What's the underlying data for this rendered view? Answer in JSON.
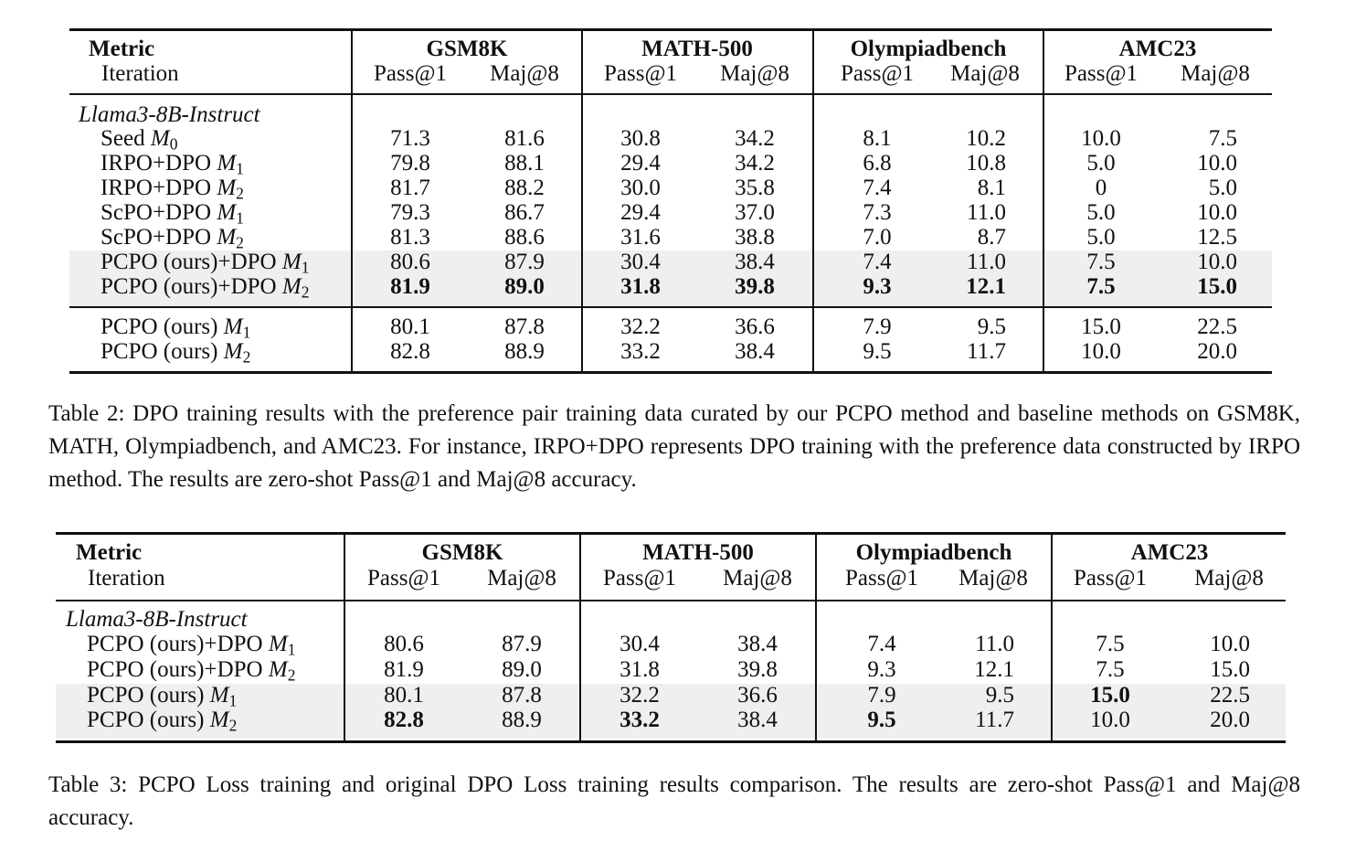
{
  "table2": {
    "header": {
      "metric": "Metric",
      "iteration": "Iteration",
      "groups": [
        "GSM8K",
        "MATH-500",
        "Olympiadbench",
        "AMC23"
      ],
      "subcolumns": [
        "Pass@1",
        "Maj@8",
        "Pass@1",
        "Maj@8",
        "Pass@1",
        "Maj@8",
        "Pass@1",
        "Maj@8"
      ]
    },
    "model": "Llama3-8B-Instruct",
    "rows": [
      {
        "method": "Seed",
        "iter": "M",
        "sub": "0",
        "values": [
          "71.3",
          "81.6",
          "30.8",
          "34.2",
          "8.1",
          "10.2",
          "10.0",
          "7.5"
        ],
        "bold": []
      },
      {
        "method": "IRPO+DPO",
        "iter": "M",
        "sub": "1",
        "values": [
          "79.8",
          "88.1",
          "29.4",
          "34.2",
          "6.8",
          "10.8",
          "5.0",
          "10.0"
        ],
        "bold": []
      },
      {
        "method": "IRPO+DPO",
        "iter": "M",
        "sub": "2",
        "values": [
          "81.7",
          "88.2",
          "30.0",
          "35.8",
          "7.4",
          "8.1",
          "0",
          "5.0"
        ],
        "bold": []
      },
      {
        "method": "ScPO+DPO",
        "iter": "M",
        "sub": "1",
        "values": [
          "79.3",
          "86.7",
          "29.4",
          "37.0",
          "7.3",
          "11.0",
          "5.0",
          "10.0"
        ],
        "bold": []
      },
      {
        "method": "ScPO+DPO",
        "iter": "M",
        "sub": "2",
        "values": [
          "81.3",
          "88.6",
          "31.6",
          "38.8",
          "7.0",
          "8.7",
          "5.0",
          "12.5"
        ],
        "bold": []
      },
      {
        "method": "PCPO (ours)+DPO",
        "iter": "M",
        "sub": "1",
        "values": [
          "80.6",
          "87.9",
          "30.4",
          "38.4",
          "7.4",
          "11.0",
          "7.5",
          "10.0"
        ],
        "bold": []
      },
      {
        "method": "PCPO (ours)+DPO",
        "iter": "M",
        "sub": "2",
        "values": [
          "81.9",
          "89.0",
          "31.8",
          "39.8",
          "9.3",
          "12.1",
          "7.5",
          "15.0"
        ],
        "bold": [
          0,
          1,
          2,
          3,
          4,
          5,
          6,
          7
        ]
      },
      {
        "method": "PCPO (ours)",
        "iter": "M",
        "sub": "1",
        "values": [
          "80.1",
          "87.8",
          "32.2",
          "36.6",
          "7.9",
          "9.5",
          "15.0",
          "22.5"
        ],
        "bold": []
      },
      {
        "method": "PCPO (ours)",
        "iter": "M",
        "sub": "2",
        "values": [
          "82.8",
          "88.9",
          "33.2",
          "38.4",
          "9.5",
          "11.7",
          "10.0",
          "20.0"
        ],
        "bold": []
      }
    ],
    "caption": "Table 2: DPO training results with the preference pair training data curated by our PCPO method and baseline methods on GSM8K, MATH, Olympiadbench, and AMC23. For instance, IRPO+DPO represents DPO training with the preference data constructed by IRPO method. The results are zero-shot Pass@1 and Maj@8 accuracy."
  },
  "table3": {
    "header": {
      "metric": "Metric",
      "iteration": "Iteration",
      "groups": [
        "GSM8K",
        "MATH-500",
        "Olympiadbench",
        "AMC23"
      ],
      "subcolumns": [
        "Pass@1",
        "Maj@8",
        "Pass@1",
        "Maj@8",
        "Pass@1",
        "Maj@8",
        "Pass@1",
        "Maj@8"
      ]
    },
    "model": "Llama3-8B-Instruct",
    "rows": [
      {
        "method": "PCPO (ours)+DPO",
        "iter": "M",
        "sub": "1",
        "values": [
          "80.6",
          "87.9",
          "30.4",
          "38.4",
          "7.4",
          "11.0",
          "7.5",
          "10.0"
        ],
        "bold": []
      },
      {
        "method": "PCPO (ours)+DPO",
        "iter": "M",
        "sub": "2",
        "values": [
          "81.9",
          "89.0",
          "31.8",
          "39.8",
          "9.3",
          "12.1",
          "7.5",
          "15.0"
        ],
        "bold": []
      },
      {
        "method": "PCPO (ours)",
        "iter": "M",
        "sub": "1",
        "values": [
          "80.1",
          "87.8",
          "32.2",
          "36.6",
          "7.9",
          "9.5",
          "15.0",
          "22.5"
        ],
        "bold": [
          6
        ]
      },
      {
        "method": "PCPO (ours)",
        "iter": "M",
        "sub": "2",
        "values": [
          "82.8",
          "88.9",
          "33.2",
          "38.4",
          "9.5",
          "11.7",
          "10.0",
          "20.0"
        ],
        "bold": [
          0,
          2,
          4
        ]
      }
    ],
    "caption": "Table 3: PCPO Loss training and original DPO Loss training results comparison. The results are zero-shot Pass@1 and Maj@8 accuracy."
  }
}
